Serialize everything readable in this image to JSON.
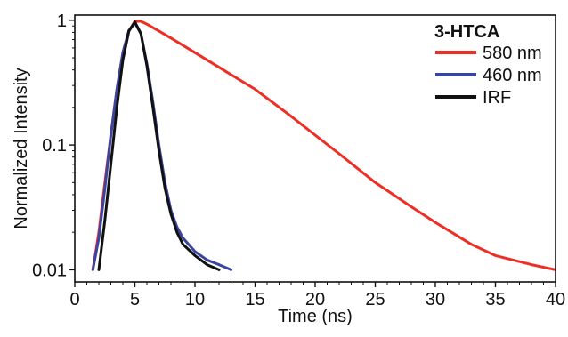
{
  "chart_data": {
    "type": "line",
    "title": "3-HTCA",
    "xlabel": "Time (ns)",
    "ylabel": "Normalized Intensity",
    "xlim": [
      0,
      40
    ],
    "ylim": [
      0.008,
      1.1
    ],
    "yscale": "log",
    "xticks": [
      0,
      5,
      10,
      15,
      20,
      25,
      30,
      35,
      40
    ],
    "yticks": [
      0.01,
      0.1,
      1
    ],
    "ytick_labels": [
      "0.01",
      "0.1",
      "1"
    ],
    "legend": {
      "placement": "top-right",
      "title": "3-HTCA"
    },
    "series": [
      {
        "name": "580 nm",
        "color": "#ee2e24",
        "x": [
          1.5,
          2.0,
          2.5,
          3.0,
          3.5,
          4.0,
          4.5,
          5.0,
          5.5,
          6.0,
          7.0,
          8.0,
          10.0,
          12.0,
          15.0,
          18.0,
          20.0,
          22.0,
          25.0,
          28.0,
          30.0,
          33.0,
          35.0,
          38.0,
          40.0
        ],
        "y": [
          0.01,
          0.02,
          0.05,
          0.12,
          0.28,
          0.55,
          0.82,
          0.98,
          0.98,
          0.93,
          0.82,
          0.72,
          0.55,
          0.42,
          0.28,
          0.17,
          0.12,
          0.085,
          0.05,
          0.032,
          0.024,
          0.016,
          0.013,
          0.011,
          0.01
        ]
      },
      {
        "name": "460 nm",
        "color": "#3a45a0",
        "x": [
          1.5,
          2.0,
          2.5,
          3.0,
          3.5,
          4.0,
          4.5,
          5.0,
          5.5,
          6.0,
          6.5,
          7.0,
          7.5,
          8.0,
          8.5,
          9.0,
          10.0,
          11.0,
          12.0,
          13.0
        ],
        "y": [
          0.01,
          0.018,
          0.045,
          0.12,
          0.28,
          0.55,
          0.83,
          0.95,
          0.78,
          0.45,
          0.22,
          0.1,
          0.05,
          0.03,
          0.022,
          0.018,
          0.014,
          0.012,
          0.011,
          0.01
        ]
      },
      {
        "name": "IRF",
        "color": "#111111",
        "x": [
          2.0,
          2.5,
          3.0,
          3.5,
          4.0,
          4.5,
          5.0,
          5.5,
          6.0,
          6.5,
          7.0,
          7.5,
          8.0,
          8.5,
          9.0,
          10.0,
          11.0,
          12.0
        ],
        "y": [
          0.01,
          0.025,
          0.07,
          0.2,
          0.48,
          0.82,
          0.97,
          0.78,
          0.43,
          0.2,
          0.09,
          0.045,
          0.028,
          0.02,
          0.016,
          0.013,
          0.011,
          0.01
        ]
      }
    ]
  }
}
